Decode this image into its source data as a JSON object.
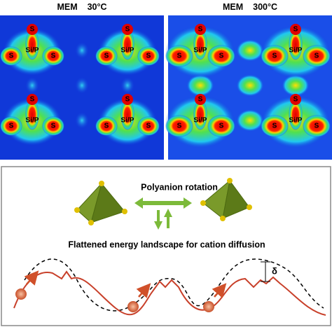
{
  "maps": [
    {
      "method": "MEM",
      "temperature": "30°C",
      "clusters": [
        {
          "top": "S",
          "left": "S",
          "right": "S",
          "center": "Si/P"
        },
        {
          "top": "S",
          "left": "S",
          "right": "S",
          "center": "Si/P"
        },
        {
          "top": "S",
          "left": "S",
          "right": "S",
          "center": "Si/P"
        },
        {
          "top": "S",
          "left": "S",
          "right": "S",
          "center": "Si/P"
        }
      ]
    },
    {
      "method": "MEM",
      "temperature": "300°C",
      "clusters": [
        {
          "top": "S",
          "left": "S",
          "right": "S",
          "center": "Si/P"
        },
        {
          "top": "S",
          "left": "S",
          "right": "S",
          "center": "Si/P"
        },
        {
          "top": "S",
          "left": "S",
          "right": "S",
          "center": "Si/P"
        },
        {
          "top": "S",
          "left": "S",
          "right": "S",
          "center": "Si/P"
        }
      ]
    }
  ],
  "scheme": {
    "rotation": "Polyanion rotation",
    "landscape": "Flattened energy landscape for cation diffusion",
    "delta": "δ"
  }
}
